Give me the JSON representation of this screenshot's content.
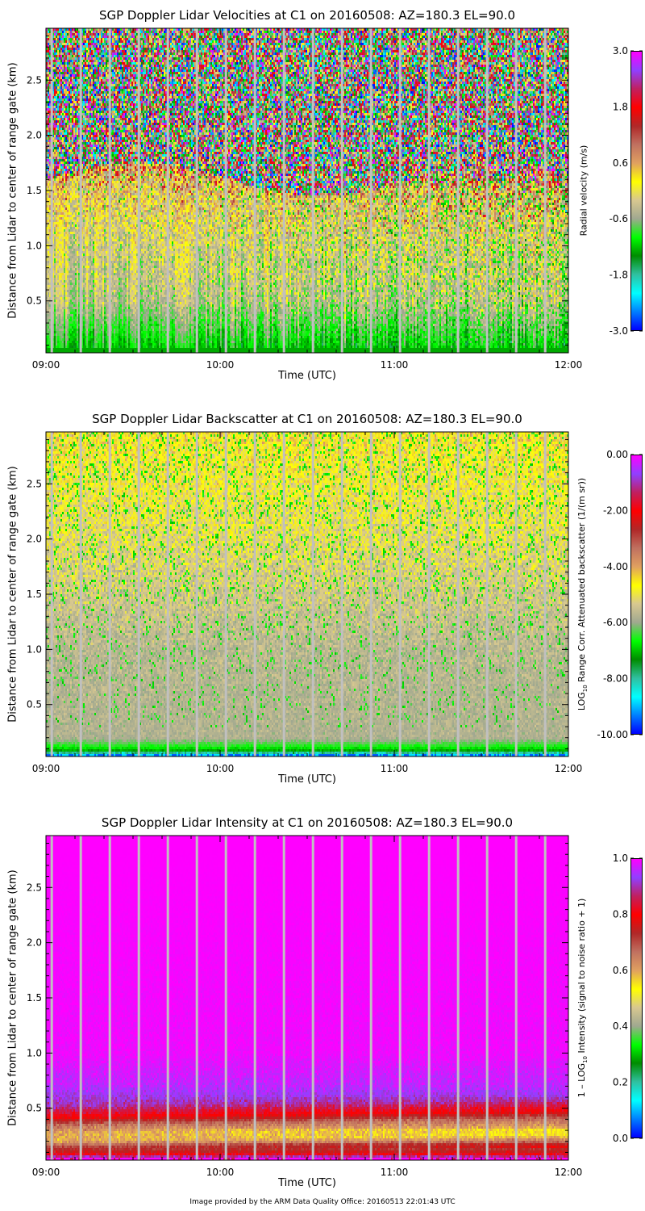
{
  "footer": "Image provided by the ARM Data Quality Office: 20160513 22:01:43 UTC",
  "colormap": [
    "#0000ff",
    "#0080ff",
    "#00ffff",
    "#30c0a0",
    "#008c00",
    "#00ff00",
    "#a0a890",
    "#d8c890",
    "#ffff00",
    "#e0a060",
    "#c07060",
    "#b02828",
    "#ff0000",
    "#c02060",
    "#9040ff",
    "#ff00ff"
  ],
  "gap_color": "#c0c0c0",
  "chart_data": [
    {
      "type": "heatmap",
      "id": "velocity",
      "title": "SGP Doppler Lidar Velocities at C1 on 20160508: AZ=180.3 EL=90.0",
      "xlabel": "Time (UTC)",
      "ylabel": "Distance from Lidar to center of range gate (km)",
      "colorbar_label": "Radial velocity (m/s)",
      "x_ticks": [
        "09:00",
        "10:00",
        "11:00",
        "12:00"
      ],
      "xlim_hours": [
        9,
        12
      ],
      "y_ticks": [
        "0.5",
        "1.0",
        "1.5",
        "2.0",
        "2.5"
      ],
      "ylim": [
        0.03,
        2.97
      ],
      "clim": [
        -3.0,
        3.0
      ],
      "cbar_ticks": [
        "3.0",
        "1.8",
        "0.6",
        "-0.6",
        "-1.8",
        "-3.0"
      ],
      "profile_km": [
        0.05,
        0.5,
        1.0,
        1.5,
        1.7,
        2.0,
        2.9
      ],
      "profile_mean": [
        -1.2,
        -0.4,
        -0.2,
        0.2,
        0.5,
        0.8,
        1.0
      ],
      "profile_spread": [
        0.2,
        0.6,
        0.8,
        1.5,
        3.0,
        3.0,
        3.0
      ]
    },
    {
      "type": "heatmap",
      "id": "backscatter",
      "title": "SGP Doppler Lidar Backscatter at C1 on 20160508: AZ=180.3 EL=90.0",
      "xlabel": "Time (UTC)",
      "ylabel": "Distance from Lidar to center of range gate (km)",
      "colorbar_label": "LOG10 Range Corr. Attenuated backscatter (1/(m sr))",
      "colorbar_label_parts": [
        "LOG",
        "10",
        " Range Corr. Attenuated backscatter (1/(m sr))"
      ],
      "x_ticks": [
        "09:00",
        "10:00",
        "11:00",
        "12:00"
      ],
      "xlim_hours": [
        9,
        12
      ],
      "y_ticks": [
        "0.5",
        "1.0",
        "1.5",
        "2.0",
        "2.5"
      ],
      "ylim": [
        0.03,
        2.97
      ],
      "clim": [
        -10.0,
        0.0
      ],
      "cbar_ticks": [
        "0.00",
        "-2.00",
        "-4.00",
        "-6.00",
        "-8.00",
        "-10.00"
      ],
      "profile_km": [
        0.04,
        0.08,
        0.12,
        0.2,
        1.0,
        2.0,
        2.9
      ],
      "profile_mean": [
        -9.0,
        -7.2,
        -6.6,
        -5.8,
        -5.7,
        -5.1,
        -4.6
      ],
      "profile_spread": [
        1.0,
        0.3,
        0.3,
        0.4,
        0.6,
        1.0,
        1.0
      ]
    },
    {
      "type": "heatmap",
      "id": "intensity",
      "title": "SGP Doppler Lidar Intensity at C1 on 20160508: AZ=180.3 EL=90.0",
      "xlabel": "Time (UTC)",
      "ylabel": "Distance from Lidar to center of range gate (km)",
      "colorbar_label": "1 - LOG10 Intensity (signal to noise ratio + 1)",
      "colorbar_label_parts": [
        "1 – LOG",
        "10",
        " Intensity (signal to noise ratio + 1)"
      ],
      "x_ticks": [
        "09:00",
        "10:00",
        "11:00",
        "12:00"
      ],
      "xlim_hours": [
        9,
        12
      ],
      "y_ticks": [
        "0.5",
        "1.0",
        "1.5",
        "2.0",
        "2.5"
      ],
      "ylim": [
        0.03,
        2.97
      ],
      "clim": [
        0.0,
        1.0
      ],
      "cbar_ticks": [
        "1.0",
        "0.8",
        "0.6",
        "0.4",
        "0.2",
        "0.0"
      ],
      "profile_km": [
        0.04,
        0.1,
        0.14,
        0.2,
        0.27,
        0.34,
        0.42,
        0.52,
        0.7,
        1.0,
        2.9
      ],
      "profile_mean": [
        0.97,
        0.76,
        0.72,
        0.6,
        0.6,
        0.66,
        0.8,
        0.9,
        0.96,
        0.99,
        1.0
      ],
      "profile_spread": [
        0.05,
        0.02,
        0.02,
        0.03,
        0.03,
        0.03,
        0.02,
        0.03,
        0.02,
        0.01,
        0.0
      ]
    }
  ],
  "gap_times_min": [
    2,
    12,
    22,
    32,
    42,
    52,
    62,
    72,
    82,
    92,
    102,
    112,
    122,
    132,
    142,
    152,
    162,
    172
  ]
}
